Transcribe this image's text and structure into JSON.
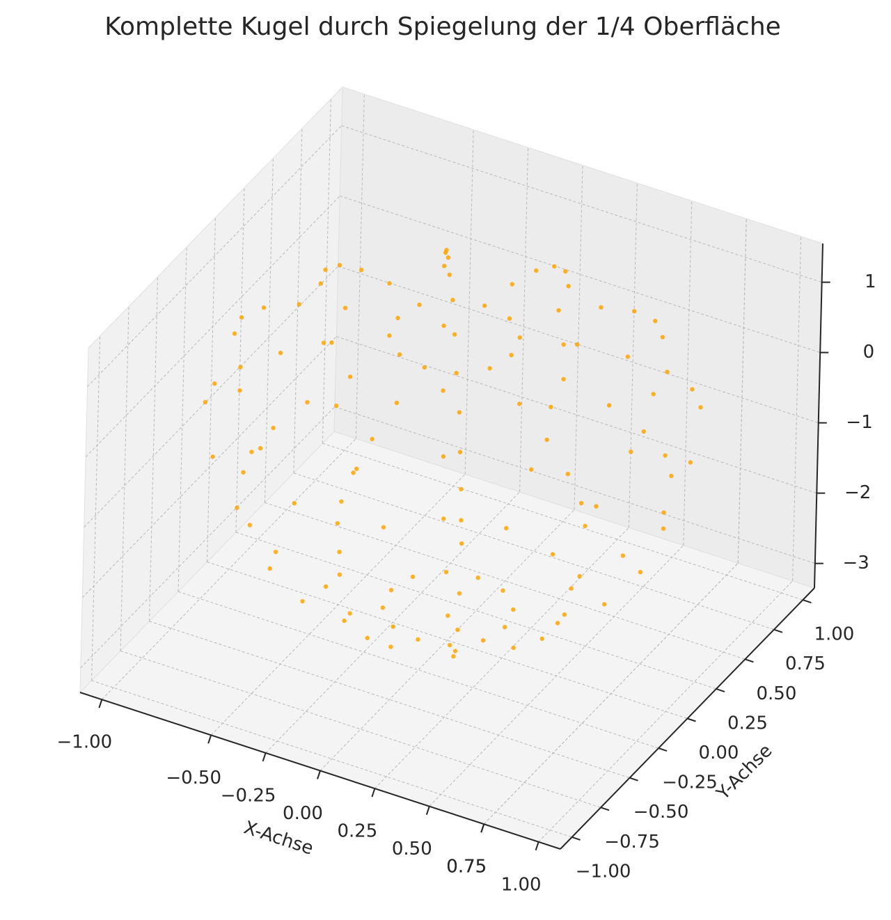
{
  "chart_data": {
    "type": "scatter3d",
    "title": "Komplette Kugel durch Spiegelung der 1/4 Oberfläche",
    "xlabel": "X-Achse",
    "ylabel": "Y-Achse",
    "xlim": [
      -1.1,
      1.1
    ],
    "ylim": [
      -1.1,
      1.1
    ],
    "zlim": [
      -3.35,
      1.55
    ],
    "xticks": [
      {
        "value": -1,
        "label": "−1.00"
      },
      0.75,
      {
        "value": -0.5,
        "label": "−0.50"
      },
      {
        "value": -0.25,
        "label": "−0.25"
      },
      {
        "value": 0,
        "label": "0.00"
      },
      0.25,
      {
        "value": 0.5,
        "label": "0.50"
      },
      0.75,
      {
        "value": 1,
        "label": "1.00"
      }
    ],
    "yticks": [
      {
        "value": -1,
        "label": "−1.00"
      },
      {
        "value": -0.75,
        "label": "−0.75"
      },
      {
        "value": -0.5,
        "label": "−0.50"
      },
      {
        "value": -0.25,
        "label": "−0.25"
      },
      {
        "value": 0,
        "label": "0.00"
      },
      0.25,
      {
        "value": 0.5,
        "label": "0.50"
      },
      0.75,
      {
        "value": 1,
        "label": "1.00"
      }
    ],
    "zticks": [
      {
        "value": -3,
        "label": "−3"
      },
      {
        "value": -2,
        "label": "−2"
      },
      {
        "value": -1,
        "label": "−1"
      },
      0,
      1
    ],
    "grid": true,
    "series": [
      {
        "color": "#ffa500",
        "x": [
          0,
          0.26,
          0.23,
          0.13,
          0,
          -0.13,
          -0.23,
          -0.26,
          -0.23,
          -0.13,
          0,
          0.13,
          0.23,
          0.5,
          0.43,
          0.25,
          0,
          -0.25,
          -0.43,
          -0.5,
          -0.43,
          -0.25,
          0,
          0.25,
          0.43,
          0.71,
          0.61,
          0.35,
          0,
          -0.35,
          -0.61,
          -0.71,
          -0.61,
          -0.35,
          0,
          0.35,
          0.61,
          0.87,
          0.75,
          0.43,
          0,
          -0.43,
          -0.75,
          -0.87,
          -0.75,
          -0.43,
          0,
          0.43,
          0.75,
          0.97,
          0.84,
          0.48,
          0,
          -0.48,
          -0.84,
          -0.97,
          -0.84,
          -0.48,
          0,
          0.48,
          0.84,
          1,
          0.87,
          0.5,
          0,
          -0.5,
          -0.87,
          -1,
          -0.87,
          -0.5,
          0,
          0.5,
          0.87,
          0.97,
          0.84,
          0.48,
          0,
          -0.48,
          -0.84,
          -0.97,
          -0.84,
          -0.48,
          0,
          0.48,
          0.84,
          0.87,
          0.75,
          0.43,
          0,
          -0.43,
          -0.75,
          -0.87,
          -0.75,
          -0.43,
          0,
          0.43,
          0.75,
          0.71,
          0.61,
          0.35,
          0,
          -0.35,
          -0.61,
          -0.71,
          -0.61,
          -0.35,
          0,
          0.35,
          0.61,
          0.5,
          0.43,
          0.25,
          0,
          -0.25,
          -0.43,
          -0.5,
          -0.43,
          -0.25,
          0,
          0.25,
          0.43,
          0.26,
          0.23,
          0.13,
          0,
          -0.13,
          -0.23,
          -0.26,
          -0.23,
          -0.13,
          0,
          0.13,
          0.23,
          0
        ],
        "y": [
          0,
          0,
          0.13,
          0.23,
          0.26,
          0.23,
          0.13,
          0,
          -0.13,
          -0.23,
          -0.26,
          -0.23,
          -0.13,
          0,
          0.25,
          0.43,
          0.5,
          0.43,
          0.25,
          0,
          -0.25,
          -0.43,
          -0.5,
          -0.43,
          -0.25,
          0,
          0.35,
          0.61,
          0.71,
          0.61,
          0.35,
          0,
          -0.35,
          -0.61,
          -0.71,
          -0.61,
          -0.35,
          0,
          0.43,
          0.75,
          0.87,
          0.75,
          0.43,
          0,
          -0.43,
          -0.75,
          -0.87,
          -0.75,
          -0.43,
          0,
          0.48,
          0.84,
          0.97,
          0.84,
          0.48,
          0,
          -0.48,
          -0.84,
          -0.97,
          -0.84,
          -0.48,
          0,
          0.5,
          0.87,
          1,
          0.87,
          0.5,
          0,
          -0.5,
          -0.87,
          -1,
          -0.87,
          -0.5,
          0,
          0.48,
          0.84,
          0.97,
          0.84,
          0.48,
          0,
          -0.48,
          -0.84,
          -0.97,
          -0.84,
          -0.48,
          0,
          0.43,
          0.75,
          0.87,
          0.75,
          0.43,
          0,
          -0.43,
          -0.75,
          -0.87,
          -0.75,
          -0.43,
          0,
          0.35,
          0.61,
          0.71,
          0.61,
          0.35,
          0,
          -0.35,
          -0.61,
          -0.71,
          -0.61,
          -0.35,
          0,
          0.25,
          0.43,
          0.5,
          0.43,
          0.25,
          0,
          -0.25,
          -0.43,
          -0.5,
          -0.43,
          -0.25,
          0,
          0.13,
          0.23,
          0.26,
          0.23,
          0.13,
          0,
          -0.13,
          -0.23,
          -0.26,
          -0.23,
          -0.13,
          0
        ],
        "z": [
          1,
          0.97,
          0.97,
          0.97,
          0.97,
          0.97,
          0.97,
          0.97,
          0.97,
          0.97,
          0.97,
          0.97,
          0.97,
          0.87,
          0.87,
          0.87,
          0.87,
          0.87,
          0.87,
          0.87,
          0.87,
          0.87,
          0.87,
          0.87,
          0.87,
          0.71,
          0.71,
          0.71,
          0.71,
          0.71,
          0.71,
          0.71,
          0.71,
          0.71,
          0.71,
          0.71,
          0.71,
          0.5,
          0.5,
          0.5,
          0.5,
          0.5,
          0.5,
          0.5,
          0.5,
          0.5,
          0.5,
          0.5,
          0.5,
          0.26,
          0.26,
          0.26,
          0.26,
          0.26,
          0.26,
          0.26,
          0.26,
          0.26,
          0.26,
          0.26,
          0.26,
          0,
          0,
          0,
          0,
          0,
          0,
          0,
          0,
          0,
          0,
          0,
          0,
          -0.78,
          -0.78,
          -0.78,
          -0.78,
          -0.78,
          -0.78,
          -0.78,
          -0.78,
          -0.78,
          -0.78,
          -0.78,
          -0.78,
          -1.5,
          -1.5,
          -1.5,
          -1.5,
          -1.5,
          -1.5,
          -1.5,
          -1.5,
          -1.5,
          -1.5,
          -1.5,
          -1.5,
          -2.12,
          -2.12,
          -2.12,
          -2.12,
          -2.12,
          -2.12,
          -2.12,
          -2.12,
          -2.12,
          -2.12,
          -2.12,
          -2.12,
          -2.6,
          -2.6,
          -2.6,
          -2.6,
          -2.6,
          -2.6,
          -2.6,
          -2.6,
          -2.6,
          -2.6,
          -2.6,
          -2.6,
          -2.9,
          -2.9,
          -2.9,
          -2.9,
          -2.9,
          -2.9,
          -2.9,
          -2.9,
          -2.9,
          -2.9,
          -2.9,
          -2.9,
          -3
        ]
      }
    ]
  }
}
